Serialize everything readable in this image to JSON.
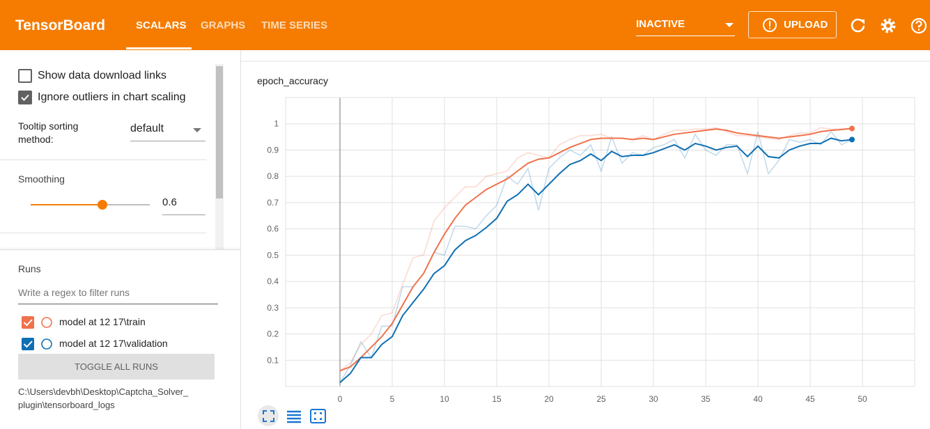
{
  "header": {
    "title": "TensorBoard",
    "tabs": [
      "SCALARS",
      "GRAPHS",
      "TIME SERIES"
    ],
    "status": "INACTIVE",
    "upload": "UPLOAD"
  },
  "sidebar": {
    "show_download": "Show data download links",
    "show_download_checked": false,
    "ignore_outliers": "Ignore outliers in chart scaling",
    "ignore_outliers_checked": true,
    "tooltip_label": "Tooltip sorting method:",
    "tooltip_value": "default",
    "smoothing_label": "Smoothing",
    "smoothing": 0.6,
    "runs_title": "Runs",
    "filter_placeholder": "Write a regex to filter runs",
    "toggle": "TOGGLE ALL RUNS",
    "logdir": [
      "C:\\Users\\devbh\\Desktop\\Captcha_Solver_",
      "plugin\\tensorboard_logs"
    ]
  },
  "chart_data": {
    "type": "line",
    "title": "epoch_accuracy",
    "x": [
      0,
      1,
      2,
      3,
      4,
      5,
      6,
      7,
      8,
      9,
      10,
      11,
      12,
      13,
      14,
      15,
      16,
      17,
      18,
      19,
      20,
      21,
      22,
      23,
      24,
      25,
      26,
      27,
      28,
      29,
      30,
      31,
      32,
      33,
      34,
      35,
      36,
      37,
      38,
      39,
      40,
      41,
      42,
      43,
      44,
      45,
      46,
      47,
      48,
      49
    ],
    "series": [
      {
        "name": "model at 12 17\\train",
        "color": "#f0714b",
        "values": [
          0.06,
          0.075,
          0.11,
          0.15,
          0.19,
          0.24,
          0.31,
          0.38,
          0.43,
          0.51,
          0.58,
          0.64,
          0.69,
          0.72,
          0.75,
          0.77,
          0.79,
          0.82,
          0.85,
          0.865,
          0.87,
          0.89,
          0.91,
          0.925,
          0.94,
          0.945,
          0.945,
          0.945,
          0.94,
          0.945,
          0.94,
          0.95,
          0.96,
          0.965,
          0.97,
          0.975,
          0.98,
          0.975,
          0.965,
          0.96,
          0.955,
          0.95,
          0.945,
          0.95,
          0.955,
          0.96,
          0.97,
          0.975,
          0.978,
          0.982
        ],
        "raw_values": [
          0.06,
          0.09,
          0.16,
          0.2,
          0.27,
          0.28,
          0.39,
          0.49,
          0.5,
          0.63,
          0.68,
          0.72,
          0.76,
          0.76,
          0.8,
          0.81,
          0.82,
          0.87,
          0.89,
          0.88,
          0.87,
          0.92,
          0.94,
          0.955,
          0.955,
          0.96,
          0.945,
          0.945,
          0.94,
          0.955,
          0.94,
          0.96,
          0.975,
          0.975,
          0.98,
          0.98,
          0.985,
          0.97,
          0.955,
          0.955,
          0.95,
          0.945,
          0.94,
          0.955,
          0.965,
          0.965,
          0.985,
          0.98,
          0.98,
          0.985
        ]
      },
      {
        "name": "model at 12 17\\validation",
        "color": "#0f6fb3",
        "values": [
          0.015,
          0.05,
          0.11,
          0.11,
          0.16,
          0.19,
          0.27,
          0.32,
          0.37,
          0.43,
          0.46,
          0.52,
          0.555,
          0.575,
          0.605,
          0.64,
          0.705,
          0.73,
          0.77,
          0.73,
          0.77,
          0.81,
          0.845,
          0.86,
          0.885,
          0.86,
          0.895,
          0.875,
          0.88,
          0.88,
          0.89,
          0.905,
          0.92,
          0.9,
          0.925,
          0.915,
          0.9,
          0.91,
          0.915,
          0.875,
          0.915,
          0.875,
          0.87,
          0.9,
          0.915,
          0.925,
          0.925,
          0.945,
          0.935,
          0.94
        ],
        "raw_values": [
          0.015,
          0.08,
          0.17,
          0.11,
          0.23,
          0.23,
          0.38,
          0.38,
          0.43,
          0.51,
          0.5,
          0.61,
          0.61,
          0.6,
          0.65,
          0.69,
          0.8,
          0.77,
          0.83,
          0.67,
          0.83,
          0.87,
          0.9,
          0.88,
          0.92,
          0.82,
          0.95,
          0.85,
          0.89,
          0.88,
          0.91,
          0.92,
          0.94,
          0.87,
          0.96,
          0.9,
          0.88,
          0.92,
          0.92,
          0.81,
          0.97,
          0.81,
          0.86,
          0.94,
          0.93,
          0.94,
          0.92,
          0.97,
          0.92,
          0.94
        ]
      }
    ],
    "xlim": [
      -5.2,
      55
    ],
    "xticks": [
      0,
      5,
      10,
      15,
      20,
      25,
      30,
      35,
      40,
      45,
      50
    ],
    "ylim": [
      0,
      1.1
    ],
    "yticks": [
      0.1,
      0.2,
      0.3,
      0.4,
      0.5,
      0.6,
      0.7,
      0.8,
      0.9,
      1
    ],
    "grid": true
  }
}
